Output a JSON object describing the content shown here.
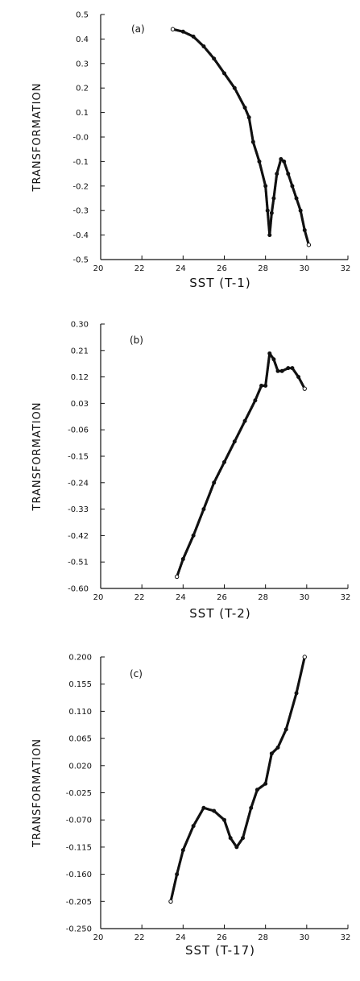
{
  "chart_data": [
    {
      "type": "scatter",
      "panel_label": "(a)",
      "xlabel": "SST  (T-1)",
      "ylabel": "TRANSFORMATION",
      "xlim": [
        20,
        32
      ],
      "ylim": [
        -0.5,
        0.5
      ],
      "x_ticks": [
        "20",
        "22",
        "24",
        "26",
        "28",
        "30",
        "32"
      ],
      "y_ticks": [
        "0.5",
        "0.4",
        "0.3",
        "0.2",
        "0.1",
        "-0.0",
        "-0.1",
        "-0.2",
        "-0.3",
        "-0.4",
        "-0.5"
      ],
      "points": [
        [
          23.5,
          0.44
        ],
        [
          24,
          0.43
        ],
        [
          24.5,
          0.41
        ],
        [
          25,
          0.37
        ],
        [
          25.5,
          0.32
        ],
        [
          26,
          0.26
        ],
        [
          26.5,
          0.2
        ],
        [
          27,
          0.12
        ],
        [
          27.2,
          0.08
        ],
        [
          27.4,
          -0.02
        ],
        [
          27.7,
          -0.1
        ],
        [
          28,
          -0.2
        ],
        [
          28.1,
          -0.3
        ],
        [
          28.2,
          -0.4
        ],
        [
          28.3,
          -0.31
        ],
        [
          28.4,
          -0.25
        ],
        [
          28.55,
          -0.15
        ],
        [
          28.75,
          -0.09
        ],
        [
          28.9,
          -0.1
        ],
        [
          29.1,
          -0.15
        ],
        [
          29.3,
          -0.2
        ],
        [
          29.5,
          -0.25
        ],
        [
          29.7,
          -0.3
        ],
        [
          29.9,
          -0.38
        ],
        [
          30.1,
          -0.44
        ]
      ]
    },
    {
      "type": "scatter",
      "panel_label": "(b)",
      "xlabel": "SST  (T-2)",
      "ylabel": "TRANSFORMATION",
      "xlim": [
        20,
        32
      ],
      "ylim": [
        -0.6,
        0.3
      ],
      "x_ticks": [
        "20",
        "22",
        "24",
        "26",
        "28",
        "30",
        "32"
      ],
      "y_ticks": [
        "0.30",
        "0.21",
        "0.12",
        "0.03",
        "-0.06",
        "-0.15",
        "-0.24",
        "-0.33",
        "-0.42",
        "-0.51",
        "-0.60"
      ],
      "points": [
        [
          23.7,
          -0.56
        ],
        [
          24,
          -0.5
        ],
        [
          24.5,
          -0.42
        ],
        [
          25,
          -0.33
        ],
        [
          25.5,
          -0.24
        ],
        [
          26,
          -0.17
        ],
        [
          26.5,
          -0.1
        ],
        [
          27,
          -0.03
        ],
        [
          27.5,
          0.04
        ],
        [
          27.8,
          0.09
        ],
        [
          28,
          0.09
        ],
        [
          28.2,
          0.2
        ],
        [
          28.4,
          0.18
        ],
        [
          28.6,
          0.14
        ],
        [
          28.8,
          0.14
        ],
        [
          29.1,
          0.15
        ],
        [
          29.3,
          0.15
        ],
        [
          29.6,
          0.12
        ],
        [
          29.9,
          0.08
        ]
      ]
    },
    {
      "type": "scatter",
      "panel_label": "(c)",
      "xlabel": "SST  (T-17)",
      "ylabel": "TRANSFORMATION",
      "xlim": [
        20,
        32
      ],
      "ylim": [
        -0.25,
        0.2
      ],
      "x_ticks": [
        "20",
        "22",
        "24",
        "26",
        "28",
        "30",
        "32"
      ],
      "y_ticks": [
        "0.200",
        "0.155",
        "0.110",
        "0.065",
        "0.020",
        "-0.025",
        "-0.070",
        "-0.115",
        "-0.160",
        "-0.205",
        "-0.250"
      ],
      "points": [
        [
          23.4,
          -0.205
        ],
        [
          23.7,
          -0.16
        ],
        [
          24,
          -0.12
        ],
        [
          24.5,
          -0.08
        ],
        [
          25,
          -0.05
        ],
        [
          25.5,
          -0.055
        ],
        [
          26,
          -0.07
        ],
        [
          26.3,
          -0.1
        ],
        [
          26.6,
          -0.115
        ],
        [
          26.9,
          -0.1
        ],
        [
          27.3,
          -0.05
        ],
        [
          27.6,
          -0.02
        ],
        [
          28,
          -0.01
        ],
        [
          28.3,
          0.04
        ],
        [
          28.6,
          0.05
        ],
        [
          29,
          0.08
        ],
        [
          29.5,
          0.14
        ],
        [
          29.9,
          0.2
        ]
      ]
    }
  ]
}
